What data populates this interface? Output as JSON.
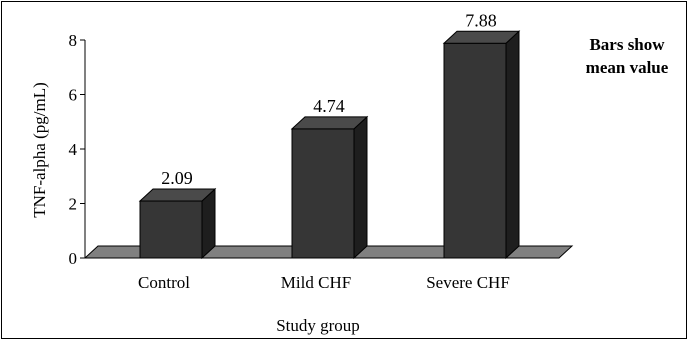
{
  "chart_data": {
    "type": "bar",
    "style": "3d",
    "categories": [
      "Control",
      "Mild CHF",
      "Severe CHF"
    ],
    "values": [
      2.09,
      4.74,
      7.88
    ],
    "value_labels": [
      "2.09",
      "4.74",
      "7.88"
    ],
    "ylabel": "TNF-alpha (pg/mL)",
    "xlabel": "Study group",
    "ylim": [
      0,
      8
    ],
    "yticks": [
      0,
      2,
      4,
      6,
      8
    ],
    "grid": false,
    "legend": "none",
    "bar_color": "#363636",
    "floor_color": "#808080",
    "note_lines": [
      "Bars show",
      "mean value"
    ]
  }
}
